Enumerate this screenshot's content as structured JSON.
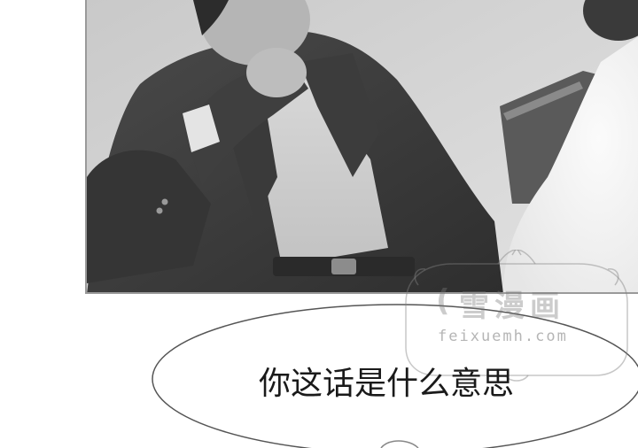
{
  "panel": {
    "scene": "photo-panel"
  },
  "watermark": {
    "brand": "雪漫画",
    "brand_mark": "(",
    "url": "feixuemh.com"
  },
  "speech_bubble": {
    "text": "你这话是什么意思"
  }
}
